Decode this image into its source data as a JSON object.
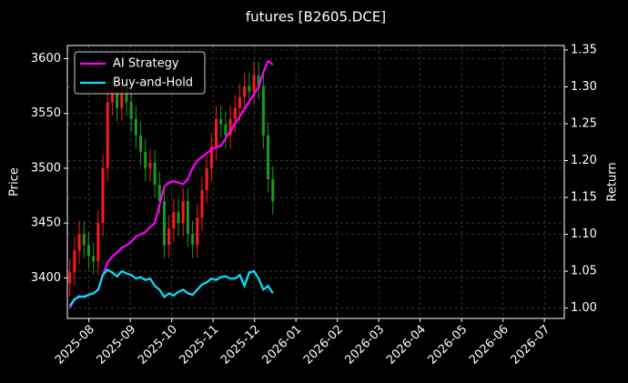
{
  "chart_data": {
    "type": "candlestick",
    "title": "futures [B2605.DCE]",
    "ylabel": "Price",
    "y2label": "Return",
    "x": [
      2025.545,
      2025.5545,
      2025.564,
      2025.5735,
      2025.583,
      2025.5925,
      2025.602,
      2025.6115,
      2025.621,
      2025.6305,
      2025.64,
      2025.6495,
      2025.659,
      2025.6685,
      2025.678,
      2025.6875,
      2025.697,
      2025.7065,
      2025.716,
      2025.7255,
      2025.735,
      2025.7445,
      2025.754,
      2025.7635,
      2025.773,
      2025.7825,
      2025.792,
      2025.8015,
      2025.811,
      2025.8205,
      2025.83,
      2025.8395,
      2025.849,
      2025.8585,
      2025.868,
      2025.8775,
      2025.887,
      2025.8965,
      2025.906,
      2025.9155,
      2025.925,
      2025.9345,
      2025.944,
      2025.9535
    ],
    "open": [
      3395,
      3405,
      3425,
      3440,
      3430,
      3420,
      3415,
      3450,
      3500,
      3560,
      3570,
      3555,
      3575,
      3560,
      3545,
      3530,
      3515,
      3500,
      3505,
      3485,
      3470,
      3430,
      3445,
      3460,
      3450,
      3470,
      3440,
      3430,
      3455,
      3480,
      3500,
      3520,
      3545,
      3540,
      3530,
      3545,
      3555,
      3565,
      3575,
      3570,
      3585,
      3575,
      3530,
      3490
    ],
    "high": [
      3417,
      3437,
      3452,
      3452,
      3442,
      3432,
      3462,
      3512,
      3572,
      3582,
      3582,
      3587,
      3587,
      3572,
      3557,
      3542,
      3527,
      3517,
      3517,
      3497,
      3482,
      3457,
      3472,
      3472,
      3482,
      3482,
      3452,
      3467,
      3492,
      3512,
      3532,
      3557,
      3557,
      3552,
      3557,
      3567,
      3577,
      3587,
      3587,
      3597,
      3597,
      3587,
      3542,
      3502
    ],
    "low": [
      3383,
      3393,
      3413,
      3418,
      3408,
      3403,
      3403,
      3438,
      3488,
      3548,
      3543,
      3543,
      3548,
      3533,
      3518,
      3503,
      3488,
      3488,
      3473,
      3458,
      3418,
      3418,
      3433,
      3438,
      3438,
      3428,
      3418,
      3418,
      3443,
      3468,
      3488,
      3508,
      3528,
      3518,
      3518,
      3533,
      3543,
      3553,
      3558,
      3558,
      3563,
      3518,
      3478,
      3458
    ],
    "close": [
      3405,
      3425,
      3440,
      3430,
      3420,
      3415,
      3450,
      3500,
      3560,
      3570,
      3555,
      3575,
      3560,
      3545,
      3530,
      3515,
      3500,
      3505,
      3485,
      3470,
      3430,
      3445,
      3460,
      3450,
      3470,
      3440,
      3430,
      3455,
      3480,
      3500,
      3520,
      3545,
      3540,
      3530,
      3545,
      3555,
      3565,
      3575,
      3570,
      3585,
      3575,
      3530,
      3490,
      3470
    ],
    "up_color": "#ff1a1a",
    "down_color": "#1a9c1a",
    "series": [
      {
        "name": "AI Strategy",
        "color": "#ff00ff",
        "axis": "y2",
        "values": [
          1.0,
          1.012,
          1.015,
          1.016,
          1.018,
          1.02,
          1.025,
          1.045,
          1.062,
          1.07,
          1.075,
          1.082,
          1.085,
          1.09,
          1.097,
          1.1,
          1.103,
          1.11,
          1.115,
          1.14,
          1.165,
          1.17,
          1.172,
          1.17,
          1.168,
          1.175,
          1.19,
          1.2,
          1.205,
          1.21,
          1.215,
          1.218,
          1.22,
          1.23,
          1.24,
          1.25,
          1.26,
          1.27,
          1.28,
          1.29,
          1.3,
          1.32,
          1.335,
          1.33
        ]
      },
      {
        "name": "Buy-and-Hold",
        "color": "#00e5ff",
        "axis": "y2",
        "values": [
          1.003,
          1.012,
          1.016,
          1.015,
          1.018,
          1.02,
          1.025,
          1.045,
          1.052,
          1.048,
          1.043,
          1.05,
          1.047,
          1.045,
          1.04,
          1.042,
          1.038,
          1.04,
          1.03,
          1.025,
          1.015,
          1.02,
          1.017,
          1.022,
          1.025,
          1.02,
          1.018,
          1.025,
          1.032,
          1.035,
          1.04,
          1.038,
          1.042,
          1.043,
          1.04,
          1.04,
          1.045,
          1.03,
          1.048,
          1.05,
          1.04,
          1.025,
          1.03,
          1.02
        ]
      }
    ],
    "xlim": [
      2025.54,
      2026.54
    ],
    "xticks": [
      {
        "value": 2025.5833,
        "label": "2025-08"
      },
      {
        "value": 2025.6667,
        "label": "2025-09"
      },
      {
        "value": 2025.75,
        "label": "2025-10"
      },
      {
        "value": 2025.8333,
        "label": "2025-11"
      },
      {
        "value": 2025.9167,
        "label": "2025-12"
      },
      {
        "value": 2026.0,
        "label": "2026-01"
      },
      {
        "value": 2026.0833,
        "label": "2026-02"
      },
      {
        "value": 2026.1667,
        "label": "2026-03"
      },
      {
        "value": 2026.25,
        "label": "2026-04"
      },
      {
        "value": 2026.3333,
        "label": "2026-05"
      },
      {
        "value": 2026.4167,
        "label": "2026-06"
      },
      {
        "value": 2026.5,
        "label": "2026-07"
      }
    ],
    "ylim": [
      3363,
      3612
    ],
    "yticks": [
      3400,
      3450,
      3500,
      3550,
      3600
    ],
    "y2lim": [
      0.986,
      1.356
    ],
    "y2ticks": [
      {
        "value": 1.0,
        "label": "1.00"
      },
      1.05,
      {
        "value": 1.1,
        "label": "1.10"
      },
      1.15,
      {
        "value": 1.2,
        "label": "1.20"
      },
      1.25,
      {
        "value": 1.3,
        "label": "1.30"
      },
      1.35
    ],
    "grid": true,
    "legend": "upper left"
  }
}
